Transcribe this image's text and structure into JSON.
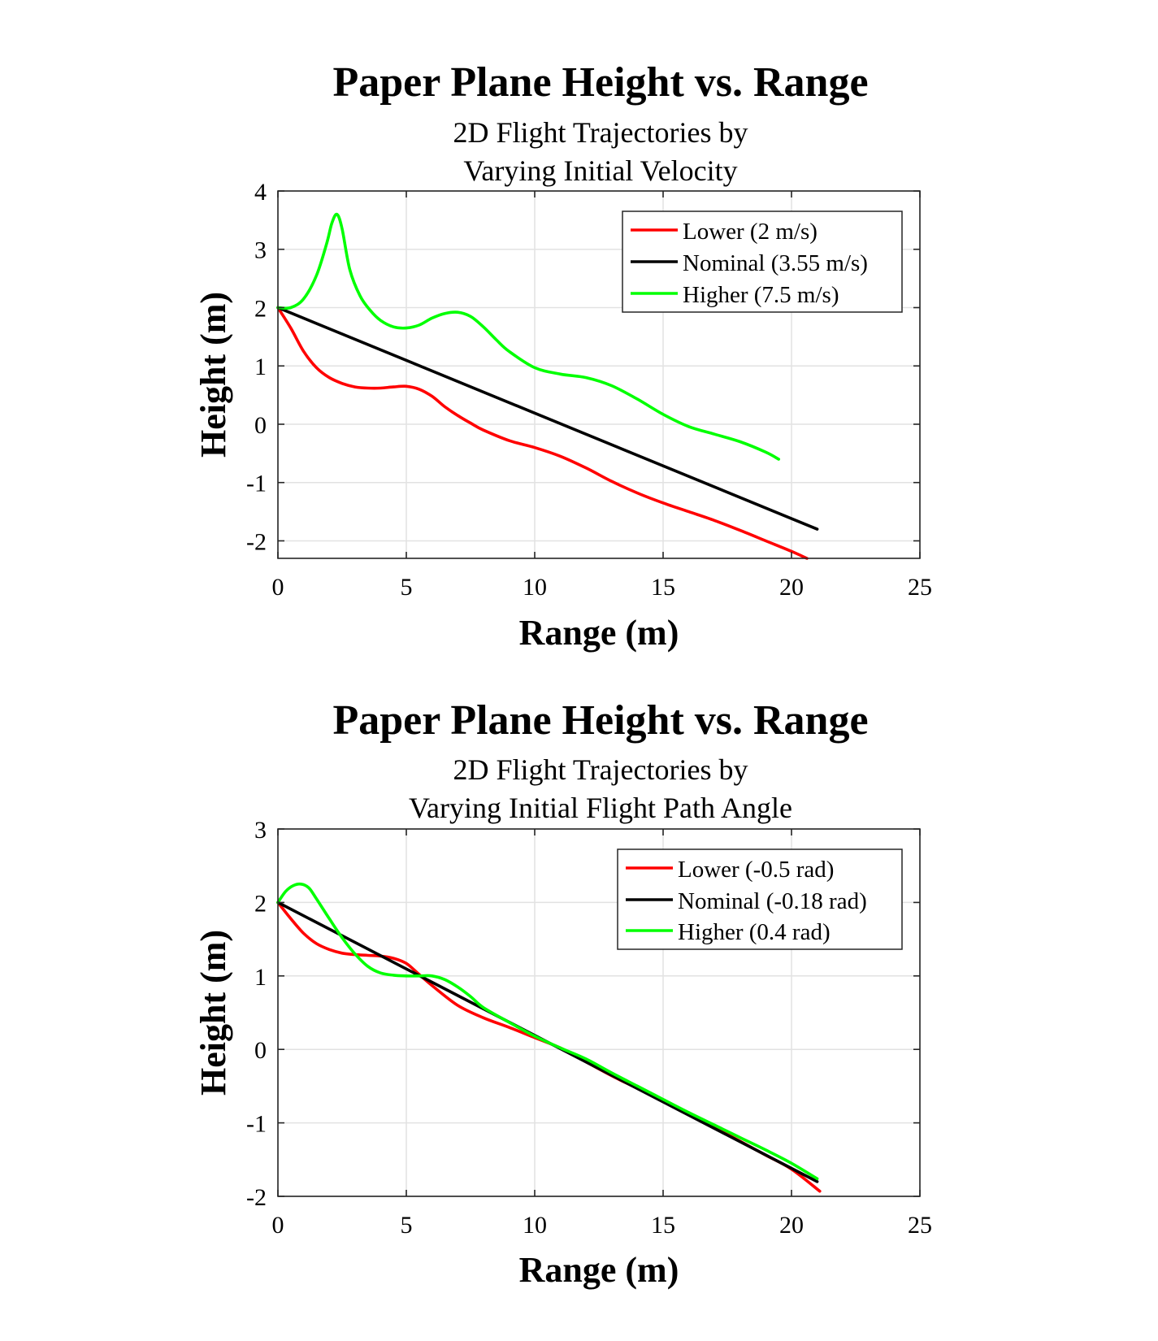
{
  "figure": "Paper Plane trajectory comparison",
  "chart_data": [
    {
      "type": "line",
      "title": "Paper Plane Height vs. Range",
      "subtitle_lines": [
        "2D Flight Trajectories by",
        "Varying Initial Velocity"
      ],
      "xlabel": "Range (m)",
      "ylabel": "Height (m)",
      "xlim": [
        0,
        25
      ],
      "ylim": [
        -2.3,
        4
      ],
      "xticks": [
        0,
        5,
        10,
        15,
        20,
        25
      ],
      "yticks": [
        -2,
        -1,
        0,
        1,
        2,
        3,
        4
      ],
      "grid": true,
      "legend_location": "top-right",
      "series": [
        {
          "name": "Lower (2 m/s)",
          "color": "#ff0000",
          "x": [
            0,
            0.5,
            1,
            1.5,
            2,
            2.5,
            3,
            3.5,
            4,
            4.5,
            5,
            5.5,
            6,
            6.5,
            7,
            7.5,
            8,
            9,
            10,
            11,
            12,
            13,
            14,
            15,
            16,
            17,
            18,
            19,
            20,
            20.6
          ],
          "y": [
            2,
            1.65,
            1.25,
            0.97,
            0.8,
            0.7,
            0.64,
            0.62,
            0.62,
            0.64,
            0.65,
            0.6,
            0.48,
            0.3,
            0.15,
            0.02,
            -0.1,
            -0.28,
            -0.4,
            -0.55,
            -0.75,
            -0.98,
            -1.18,
            -1.35,
            -1.5,
            -1.65,
            -1.82,
            -2.0,
            -2.18,
            -2.3
          ]
        },
        {
          "name": "Nominal (3.55 m/s)",
          "color": "#000000",
          "x": [
            0,
            21
          ],
          "y": [
            2,
            -1.8
          ]
        },
        {
          "name": "Higher (7.5 m/s)",
          "color": "#00ff00",
          "x": [
            0,
            0.5,
            1,
            1.5,
            1.9,
            2.1,
            2.3,
            2.5,
            2.8,
            3.2,
            3.6,
            4,
            4.5,
            5,
            5.5,
            6,
            6.5,
            7,
            7.5,
            8,
            8.5,
            9,
            10,
            11,
            12,
            13,
            14,
            15,
            16,
            17,
            18,
            19,
            19.5
          ],
          "y": [
            2,
            2,
            2.15,
            2.55,
            3.1,
            3.45,
            3.6,
            3.35,
            2.65,
            2.2,
            1.95,
            1.78,
            1.67,
            1.65,
            1.7,
            1.82,
            1.9,
            1.92,
            1.85,
            1.67,
            1.45,
            1.25,
            0.97,
            0.86,
            0.8,
            0.66,
            0.43,
            0.17,
            -0.04,
            -0.17,
            -0.3,
            -0.48,
            -0.6
          ]
        }
      ]
    },
    {
      "type": "line",
      "title": "Paper Plane Height vs. Range",
      "subtitle_lines": [
        "2D Flight Trajectories by",
        "Varying Initial Flight Path Angle"
      ],
      "xlabel": "Range (m)",
      "ylabel": "Height (m)",
      "xlim": [
        0,
        25
      ],
      "ylim": [
        -2,
        3
      ],
      "xticks": [
        0,
        5,
        10,
        15,
        20,
        25
      ],
      "yticks": [
        -2,
        -1,
        0,
        1,
        2,
        3
      ],
      "grid": true,
      "legend_location": "top-right",
      "series": [
        {
          "name": "Lower (-0.5 rad)",
          "color": "#ff0000",
          "x": [
            0,
            0.5,
            1,
            1.5,
            2,
            2.5,
            3,
            3.5,
            4,
            4.5,
            5,
            5.5,
            6,
            7,
            8,
            9,
            10,
            11,
            12,
            13,
            14,
            15,
            16,
            17,
            18,
            19,
            20,
            21.1
          ],
          "y": [
            2,
            1.78,
            1.58,
            1.44,
            1.36,
            1.31,
            1.29,
            1.28,
            1.27,
            1.24,
            1.17,
            1.02,
            0.87,
            0.6,
            0.43,
            0.3,
            0.16,
            0.02,
            -0.17,
            -0.36,
            -0.53,
            -0.7,
            -0.88,
            -1.06,
            -1.25,
            -1.44,
            -1.63,
            -1.93
          ]
        },
        {
          "name": "Nominal (-0.18 rad)",
          "color": "#000000",
          "x": [
            0,
            21
          ],
          "y": [
            2,
            -1.8
          ]
        },
        {
          "name": "Higher (0.4 rad)",
          "color": "#00ff00",
          "x": [
            0,
            0.3,
            0.6,
            0.9,
            1.2,
            1.5,
            2,
            2.5,
            3,
            3.5,
            4,
            4.5,
            5,
            5.5,
            6,
            6.5,
            7,
            7.5,
            8,
            9,
            10,
            11,
            12,
            13,
            14,
            15,
            16,
            17,
            18,
            19,
            20,
            21
          ],
          "y": [
            2,
            2.15,
            2.23,
            2.25,
            2.2,
            2.05,
            1.78,
            1.52,
            1.3,
            1.13,
            1.04,
            1.01,
            1.0,
            1.0,
            1.0,
            0.95,
            0.85,
            0.72,
            0.57,
            0.37,
            0.18,
            0.02,
            -0.13,
            -0.32,
            -0.5,
            -0.68,
            -0.86,
            -1.03,
            -1.2,
            -1.37,
            -1.55,
            -1.76
          ]
        }
      ]
    }
  ]
}
